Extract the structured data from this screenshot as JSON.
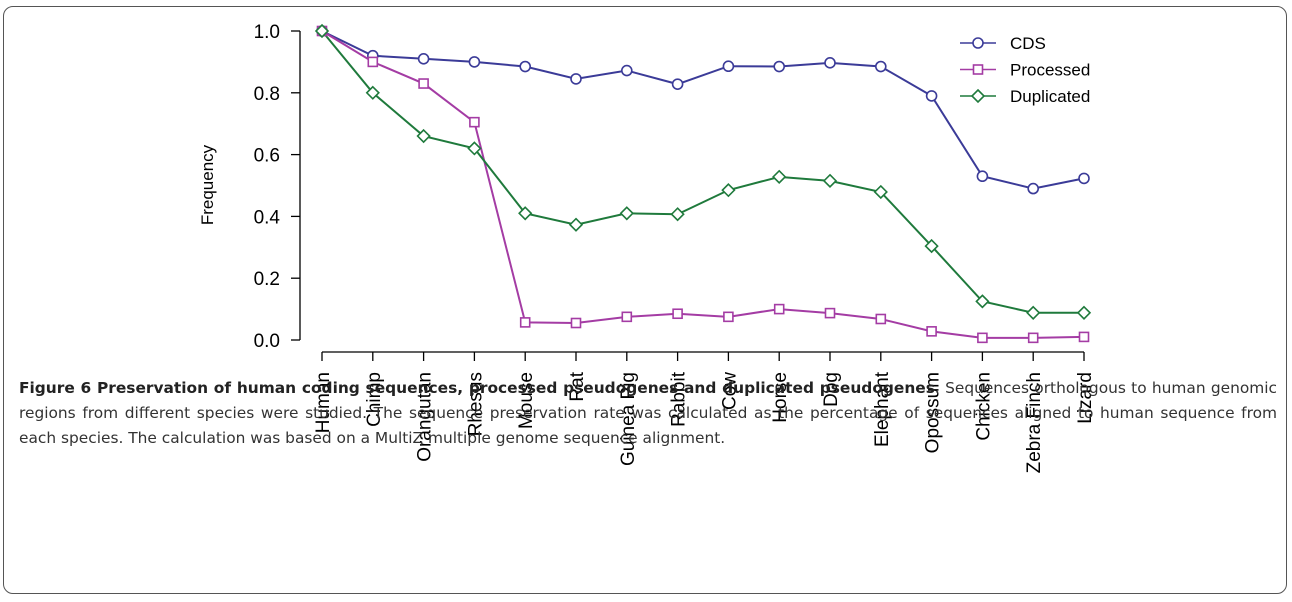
{
  "chart_data": {
    "type": "line",
    "y_label": "Frequency",
    "categories": [
      "Human",
      "Chimp",
      "Orangutan",
      "Rhesus",
      "Mouse",
      "Rat",
      "Guinea Pig",
      "Rabbit",
      "Cow",
      "Horse",
      "Dog",
      "Elephant",
      "Opossum",
      "Chicken",
      "Zebra Finch",
      "Lizard"
    ],
    "series": [
      {
        "name": "CDS",
        "color": "#3b3b98",
        "marker": "circle",
        "values": [
          1.0,
          0.92,
          0.91,
          0.9,
          0.885,
          0.845,
          0.872,
          0.828,
          0.886,
          0.885,
          0.897,
          0.885,
          0.79,
          0.53,
          0.49,
          0.523
        ]
      },
      {
        "name": "Processed",
        "color": "#a43ca4",
        "marker": "square",
        "values": [
          1.0,
          0.9,
          0.83,
          0.705,
          0.057,
          0.055,
          0.075,
          0.085,
          0.075,
          0.1,
          0.087,
          0.068,
          0.028,
          0.007,
          0.007,
          0.01
        ]
      },
      {
        "name": "Duplicated",
        "color": "#1f7a3c",
        "marker": "diamond",
        "values": [
          1.0,
          0.8,
          0.66,
          0.62,
          0.41,
          0.373,
          0.41,
          0.407,
          0.485,
          0.528,
          0.515,
          0.479,
          0.304,
          0.125,
          0.088,
          0.088
        ]
      }
    ],
    "ylim": [
      0,
      1
    ],
    "yticks": [
      {
        "value": 0,
        "label": "0.0"
      },
      {
        "value": 0.2,
        "label": "0.2"
      },
      {
        "value": 0.4,
        "label": "0.4"
      },
      {
        "value": 0.6,
        "label": "0.6"
      },
      {
        "value": 0.8,
        "label": "0.8"
      },
      {
        "value": 1,
        "label": "1.0"
      }
    ],
    "grid": false,
    "legend": "top-right",
    "caption_title": "Figure 6 Preservation of human coding sequences, processed pseudogenes and duplicated pseudogenes",
    "caption_text": ". Sequences orthologous to human genomic regions from different species were studied. The sequence preservation rate was calculated as the percentage of sequences aligned to human sequence from each species. The calculation was based on a MultiZ multiple genome sequence alignment."
  }
}
